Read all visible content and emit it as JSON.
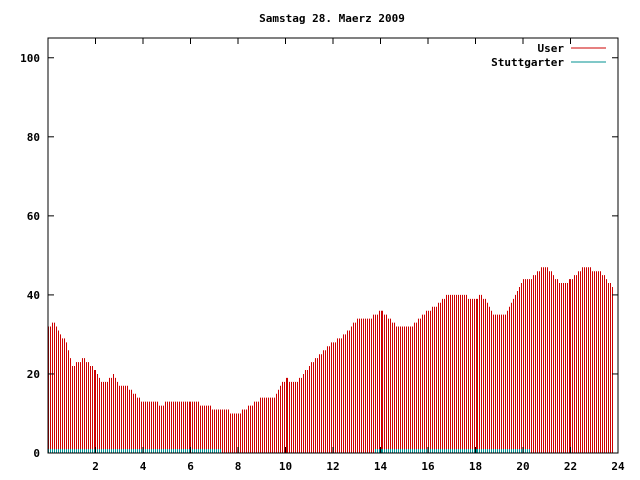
{
  "chart_data": {
    "type": "bar",
    "title": "Samstag 28. Maerz 2009",
    "xlabel": "",
    "ylabel": "",
    "xlim": [
      0,
      24
    ],
    "ylim": [
      0,
      105
    ],
    "x_ticks": [
      2,
      4,
      6,
      8,
      10,
      12,
      14,
      16,
      18,
      20,
      22,
      24
    ],
    "y_ticks": [
      0,
      20,
      40,
      60,
      80,
      100
    ],
    "grid": false,
    "legend_position": "top-right",
    "series": [
      {
        "name": "User",
        "color": "#cc0000",
        "points": [
          [
            0.0,
            32
          ],
          [
            0.25,
            33
          ],
          [
            0.5,
            30
          ],
          [
            0.75,
            28
          ],
          [
            1.0,
            22
          ],
          [
            1.25,
            23
          ],
          [
            1.5,
            24
          ],
          [
            1.75,
            22
          ],
          [
            2.0,
            21
          ],
          [
            2.25,
            18
          ],
          [
            2.5,
            18
          ],
          [
            2.75,
            20
          ],
          [
            3.0,
            17
          ],
          [
            3.25,
            17
          ],
          [
            3.5,
            16
          ],
          [
            3.75,
            14
          ],
          [
            4.0,
            13
          ],
          [
            4.25,
            13
          ],
          [
            4.5,
            13
          ],
          [
            4.75,
            12
          ],
          [
            5.0,
            13
          ],
          [
            5.25,
            13
          ],
          [
            5.5,
            13
          ],
          [
            5.75,
            13
          ],
          [
            6.0,
            13
          ],
          [
            6.25,
            13
          ],
          [
            6.5,
            12
          ],
          [
            6.75,
            12
          ],
          [
            7.0,
            11
          ],
          [
            7.25,
            11
          ],
          [
            7.5,
            11
          ],
          [
            7.75,
            10
          ],
          [
            8.0,
            10
          ],
          [
            8.25,
            11
          ],
          [
            8.5,
            12
          ],
          [
            8.75,
            13
          ],
          [
            9.0,
            14
          ],
          [
            9.25,
            14
          ],
          [
            9.5,
            14
          ],
          [
            9.75,
            17
          ],
          [
            10.0,
            19
          ],
          [
            10.25,
            18
          ],
          [
            10.5,
            18
          ],
          [
            10.75,
            20
          ],
          [
            11.0,
            22
          ],
          [
            11.25,
            24
          ],
          [
            11.5,
            25
          ],
          [
            11.75,
            27
          ],
          [
            12.0,
            28
          ],
          [
            12.25,
            29
          ],
          [
            12.5,
            30
          ],
          [
            12.75,
            32
          ],
          [
            13.0,
            34
          ],
          [
            13.25,
            34
          ],
          [
            13.5,
            34
          ],
          [
            13.75,
            35
          ],
          [
            14.0,
            36
          ],
          [
            14.25,
            35
          ],
          [
            14.5,
            33
          ],
          [
            14.75,
            32
          ],
          [
            15.0,
            32
          ],
          [
            15.25,
            32
          ],
          [
            15.5,
            33
          ],
          [
            15.75,
            35
          ],
          [
            16.0,
            36
          ],
          [
            16.25,
            37
          ],
          [
            16.5,
            38
          ],
          [
            16.75,
            40
          ],
          [
            17.0,
            40
          ],
          [
            17.25,
            40
          ],
          [
            17.5,
            40
          ],
          [
            17.75,
            39
          ],
          [
            18.0,
            39
          ],
          [
            18.25,
            40
          ],
          [
            18.5,
            38
          ],
          [
            18.75,
            35
          ],
          [
            19.0,
            35
          ],
          [
            19.25,
            35
          ],
          [
            19.5,
            38
          ],
          [
            19.75,
            41
          ],
          [
            20.0,
            44
          ],
          [
            20.25,
            44
          ],
          [
            20.5,
            45
          ],
          [
            20.75,
            47
          ],
          [
            21.0,
            47
          ],
          [
            21.25,
            45
          ],
          [
            21.5,
            43
          ],
          [
            21.75,
            43
          ],
          [
            22.0,
            44
          ],
          [
            22.25,
            45
          ],
          [
            22.5,
            47
          ],
          [
            22.75,
            47
          ],
          [
            23.0,
            46
          ],
          [
            23.25,
            46
          ],
          [
            23.5,
            44
          ],
          [
            23.75,
            42
          ]
        ]
      },
      {
        "name": "Stuttgarter",
        "color": "#009090",
        "points": [
          [
            0.0,
            1
          ],
          [
            0.5,
            1
          ],
          [
            1.0,
            1
          ],
          [
            1.5,
            1
          ],
          [
            2.0,
            1
          ],
          [
            2.5,
            1
          ],
          [
            3.0,
            1
          ],
          [
            3.5,
            1
          ],
          [
            4.0,
            1
          ],
          [
            4.5,
            1
          ],
          [
            5.0,
            1
          ],
          [
            5.5,
            1
          ],
          [
            6.0,
            1
          ],
          [
            6.5,
            1
          ],
          [
            7.0,
            1
          ],
          [
            7.5,
            0
          ],
          [
            8.0,
            0
          ],
          [
            8.5,
            0
          ],
          [
            9.0,
            0
          ],
          [
            9.5,
            0
          ],
          [
            10.0,
            0
          ],
          [
            10.5,
            0
          ],
          [
            11.0,
            0
          ],
          [
            11.5,
            0
          ],
          [
            12.0,
            0
          ],
          [
            12.5,
            0
          ],
          [
            13.0,
            0
          ],
          [
            13.5,
            0
          ],
          [
            14.0,
            1
          ],
          [
            14.5,
            1
          ],
          [
            15.0,
            1
          ],
          [
            15.5,
            1
          ],
          [
            16.0,
            1
          ],
          [
            16.5,
            1
          ],
          [
            17.0,
            1
          ],
          [
            17.5,
            1
          ],
          [
            18.0,
            1
          ],
          [
            18.5,
            1
          ],
          [
            19.0,
            1
          ],
          [
            19.5,
            1
          ],
          [
            20.0,
            1
          ],
          [
            20.5,
            0
          ],
          [
            21.0,
            0
          ],
          [
            21.5,
            0
          ],
          [
            22.0,
            0
          ],
          [
            22.5,
            0
          ],
          [
            23.0,
            0
          ],
          [
            23.5,
            0
          ]
        ]
      }
    ]
  }
}
